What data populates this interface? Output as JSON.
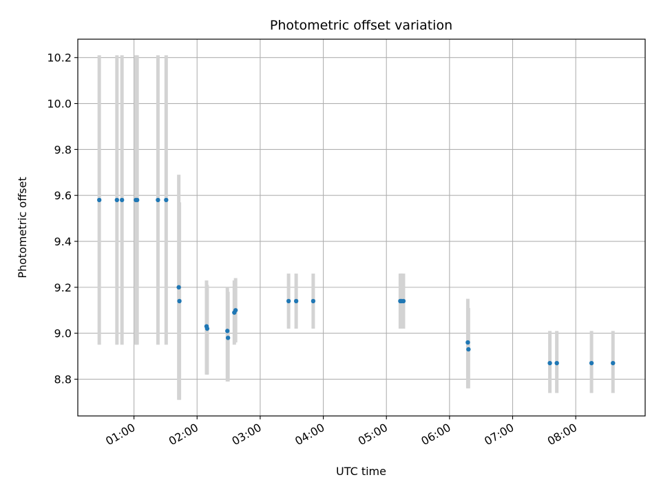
{
  "chart_data": {
    "type": "scatter",
    "title": "Photometric offset variation",
    "xlabel": "UTC time",
    "ylabel": "Photometric offset",
    "x_unit": "hours UTC",
    "xlim": [
      0.11,
      9.1
    ],
    "ylim": [
      8.64,
      10.28
    ],
    "grid": true,
    "x_ticks": [
      {
        "value": 1,
        "label": "01:00"
      },
      {
        "value": 2,
        "label": "02:00"
      },
      {
        "value": 3,
        "label": "03:00"
      },
      {
        "value": 4,
        "label": "04:00"
      },
      {
        "value": 5,
        "label": "05:00"
      },
      {
        "value": 6,
        "label": "06:00"
      },
      {
        "value": 7,
        "label": "07:00"
      },
      {
        "value": 8,
        "label": "08:00"
      }
    ],
    "y_ticks": [
      {
        "value": 8.8,
        "label": "8.8"
      },
      {
        "value": 9.0,
        "label": "9.0"
      },
      {
        "value": 9.2,
        "label": "9.2"
      },
      {
        "value": 9.4,
        "label": "9.4"
      },
      {
        "value": 9.6,
        "label": "9.6"
      },
      {
        "value": 9.8,
        "label": "9.8"
      },
      {
        "value": 10.0,
        "label": "10.0"
      },
      {
        "value": 10.2,
        "label": "10.2"
      }
    ],
    "series": [
      {
        "marker_color": "#1f77b4",
        "errorbar_color": "#d3d3d3",
        "points": [
          {
            "x": 0.45,
            "y": 9.58,
            "yerr_low": 8.95,
            "yerr_high": 10.21
          },
          {
            "x": 0.73,
            "y": 9.58,
            "yerr_low": 8.95,
            "yerr_high": 10.21
          },
          {
            "x": 0.81,
            "y": 9.58,
            "yerr_low": 8.95,
            "yerr_high": 10.21
          },
          {
            "x": 1.03,
            "y": 9.58,
            "yerr_low": 8.95,
            "yerr_high": 10.21
          },
          {
            "x": 1.05,
            "y": 9.58,
            "yerr_low": 8.95,
            "yerr_high": 10.21
          },
          {
            "x": 1.38,
            "y": 9.58,
            "yerr_low": 8.95,
            "yerr_high": 10.21
          },
          {
            "x": 1.51,
            "y": 9.58,
            "yerr_low": 8.95,
            "yerr_high": 10.21
          },
          {
            "x": 1.71,
            "y": 9.2,
            "yerr_low": 8.71,
            "yerr_high": 9.69
          },
          {
            "x": 1.72,
            "y": 9.14,
            "yerr_low": 8.71,
            "yerr_high": 9.57
          },
          {
            "x": 2.15,
            "y": 9.03,
            "yerr_low": 8.82,
            "yerr_high": 9.23
          },
          {
            "x": 2.16,
            "y": 9.02,
            "yerr_low": 8.82,
            "yerr_high": 9.21
          },
          {
            "x": 2.48,
            "y": 9.01,
            "yerr_low": 8.79,
            "yerr_high": 9.2
          },
          {
            "x": 2.49,
            "y": 8.98,
            "yerr_low": 8.79,
            "yerr_high": 9.18
          },
          {
            "x": 2.59,
            "y": 9.09,
            "yerr_low": 8.95,
            "yerr_high": 9.23
          },
          {
            "x": 2.61,
            "y": 9.1,
            "yerr_low": 8.96,
            "yerr_high": 9.24
          },
          {
            "x": 3.45,
            "y": 9.14,
            "yerr_low": 9.02,
            "yerr_high": 9.26
          },
          {
            "x": 3.57,
            "y": 9.14,
            "yerr_low": 9.02,
            "yerr_high": 9.26
          },
          {
            "x": 3.84,
            "y": 9.14,
            "yerr_low": 9.02,
            "yerr_high": 9.26
          },
          {
            "x": 5.22,
            "y": 9.14,
            "yerr_low": 9.02,
            "yerr_high": 9.26
          },
          {
            "x": 5.24,
            "y": 9.14,
            "yerr_low": 9.02,
            "yerr_high": 9.26
          },
          {
            "x": 5.27,
            "y": 9.14,
            "yerr_low": 9.02,
            "yerr_high": 9.26
          },
          {
            "x": 6.29,
            "y": 8.96,
            "yerr_low": 8.76,
            "yerr_high": 9.15
          },
          {
            "x": 6.3,
            "y": 8.93,
            "yerr_low": 8.76,
            "yerr_high": 9.11
          },
          {
            "x": 7.59,
            "y": 8.87,
            "yerr_low": 8.74,
            "yerr_high": 9.01
          },
          {
            "x": 7.7,
            "y": 8.87,
            "yerr_low": 8.74,
            "yerr_high": 9.01
          },
          {
            "x": 8.25,
            "y": 8.87,
            "yerr_low": 8.74,
            "yerr_high": 9.01
          },
          {
            "x": 8.59,
            "y": 8.87,
            "yerr_low": 8.74,
            "yerr_high": 9.01
          }
        ]
      }
    ]
  }
}
